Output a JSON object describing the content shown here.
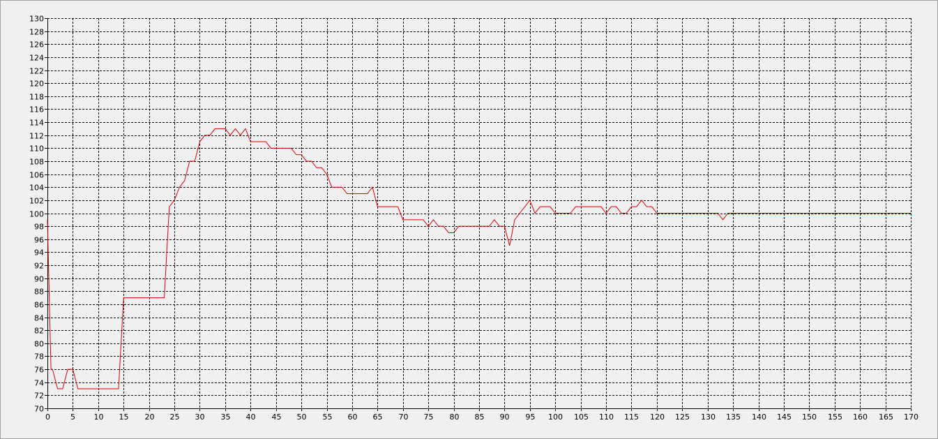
{
  "chart_data": {
    "type": "line",
    "title": "",
    "xlabel": "",
    "ylabel": "",
    "xlim": [
      0,
      170
    ],
    "ylim": [
      70,
      130
    ],
    "x_ticks": [
      0,
      5,
      10,
      15,
      20,
      25,
      30,
      35,
      40,
      45,
      50,
      55,
      60,
      65,
      70,
      75,
      80,
      85,
      90,
      95,
      100,
      105,
      110,
      115,
      120,
      125,
      130,
      135,
      140,
      145,
      150,
      155,
      160,
      165,
      170
    ],
    "y_ticks": [
      70,
      72,
      74,
      76,
      78,
      80,
      82,
      84,
      86,
      88,
      90,
      92,
      94,
      96,
      98,
      100,
      102,
      104,
      106,
      108,
      110,
      112,
      114,
      116,
      118,
      120,
      122,
      124,
      126,
      128,
      130
    ],
    "grid": true,
    "legend": "none",
    "colors": {
      "line": "#e00000",
      "grid": "#000000",
      "background": "#f0f0f0"
    },
    "series": [
      {
        "x": [
          0,
          0.7,
          1,
          2,
          3,
          4,
          5,
          6,
          7,
          8,
          9,
          10,
          11,
          12,
          13,
          14,
          15,
          16,
          17,
          18,
          19,
          20,
          21,
          22,
          23,
          24,
          25,
          26,
          27,
          28,
          29,
          30,
          31,
          32,
          33,
          34,
          35,
          36,
          37,
          38,
          39,
          40,
          41,
          42,
          43,
          44,
          45,
          46,
          47,
          48,
          49,
          50,
          51,
          52,
          53,
          54,
          55,
          56,
          57,
          58,
          59,
          60,
          61,
          62,
          63,
          64,
          65,
          66,
          67,
          68,
          69,
          70,
          71,
          72,
          73,
          74,
          75,
          76,
          77,
          78,
          79,
          80,
          81,
          82,
          83,
          84,
          85,
          86,
          87,
          88,
          89,
          90,
          91,
          92,
          93,
          94,
          95,
          96,
          97,
          98,
          99,
          100,
          101,
          102,
          103,
          104,
          105,
          106,
          107,
          108,
          109,
          110,
          111,
          112,
          113,
          114,
          115,
          116,
          117,
          118,
          119,
          120,
          121,
          122,
          123,
          124,
          125,
          126,
          127,
          128,
          129,
          130,
          131,
          132,
          133,
          134,
          135,
          140,
          145,
          150,
          155,
          160,
          165,
          170
        ],
        "y": [
          99,
          76,
          76,
          73,
          73,
          76,
          76,
          73,
          73,
          73,
          73,
          73,
          73,
          73,
          73,
          73,
          87,
          87,
          87,
          87,
          87,
          87,
          87,
          87,
          87,
          101,
          102,
          104,
          105,
          108,
          108,
          111,
          112,
          112,
          113,
          113,
          113,
          112,
          113,
          112,
          113,
          111,
          111,
          111,
          111,
          110,
          110,
          110,
          110,
          110,
          109,
          109,
          108,
          108,
          107,
          107,
          106,
          104,
          104,
          104,
          103,
          103,
          103,
          103,
          103,
          104,
          101,
          101,
          101,
          101,
          101,
          99,
          99,
          99,
          99,
          99,
          98,
          99,
          98,
          98,
          97,
          97,
          98,
          98,
          98,
          98,
          98,
          98,
          98,
          99,
          98,
          98,
          95,
          99,
          100,
          101,
          102,
          100,
          101,
          101,
          101,
          100,
          100,
          100,
          100,
          101,
          101,
          101,
          101,
          101,
          101,
          100,
          101,
          101,
          100,
          100,
          101,
          101,
          102,
          101,
          101,
          100,
          100,
          100,
          100,
          100,
          100,
          100,
          100,
          100,
          100,
          100,
          100,
          100,
          99,
          100,
          100,
          100,
          100,
          100,
          100,
          100,
          100,
          100
        ]
      }
    ]
  }
}
